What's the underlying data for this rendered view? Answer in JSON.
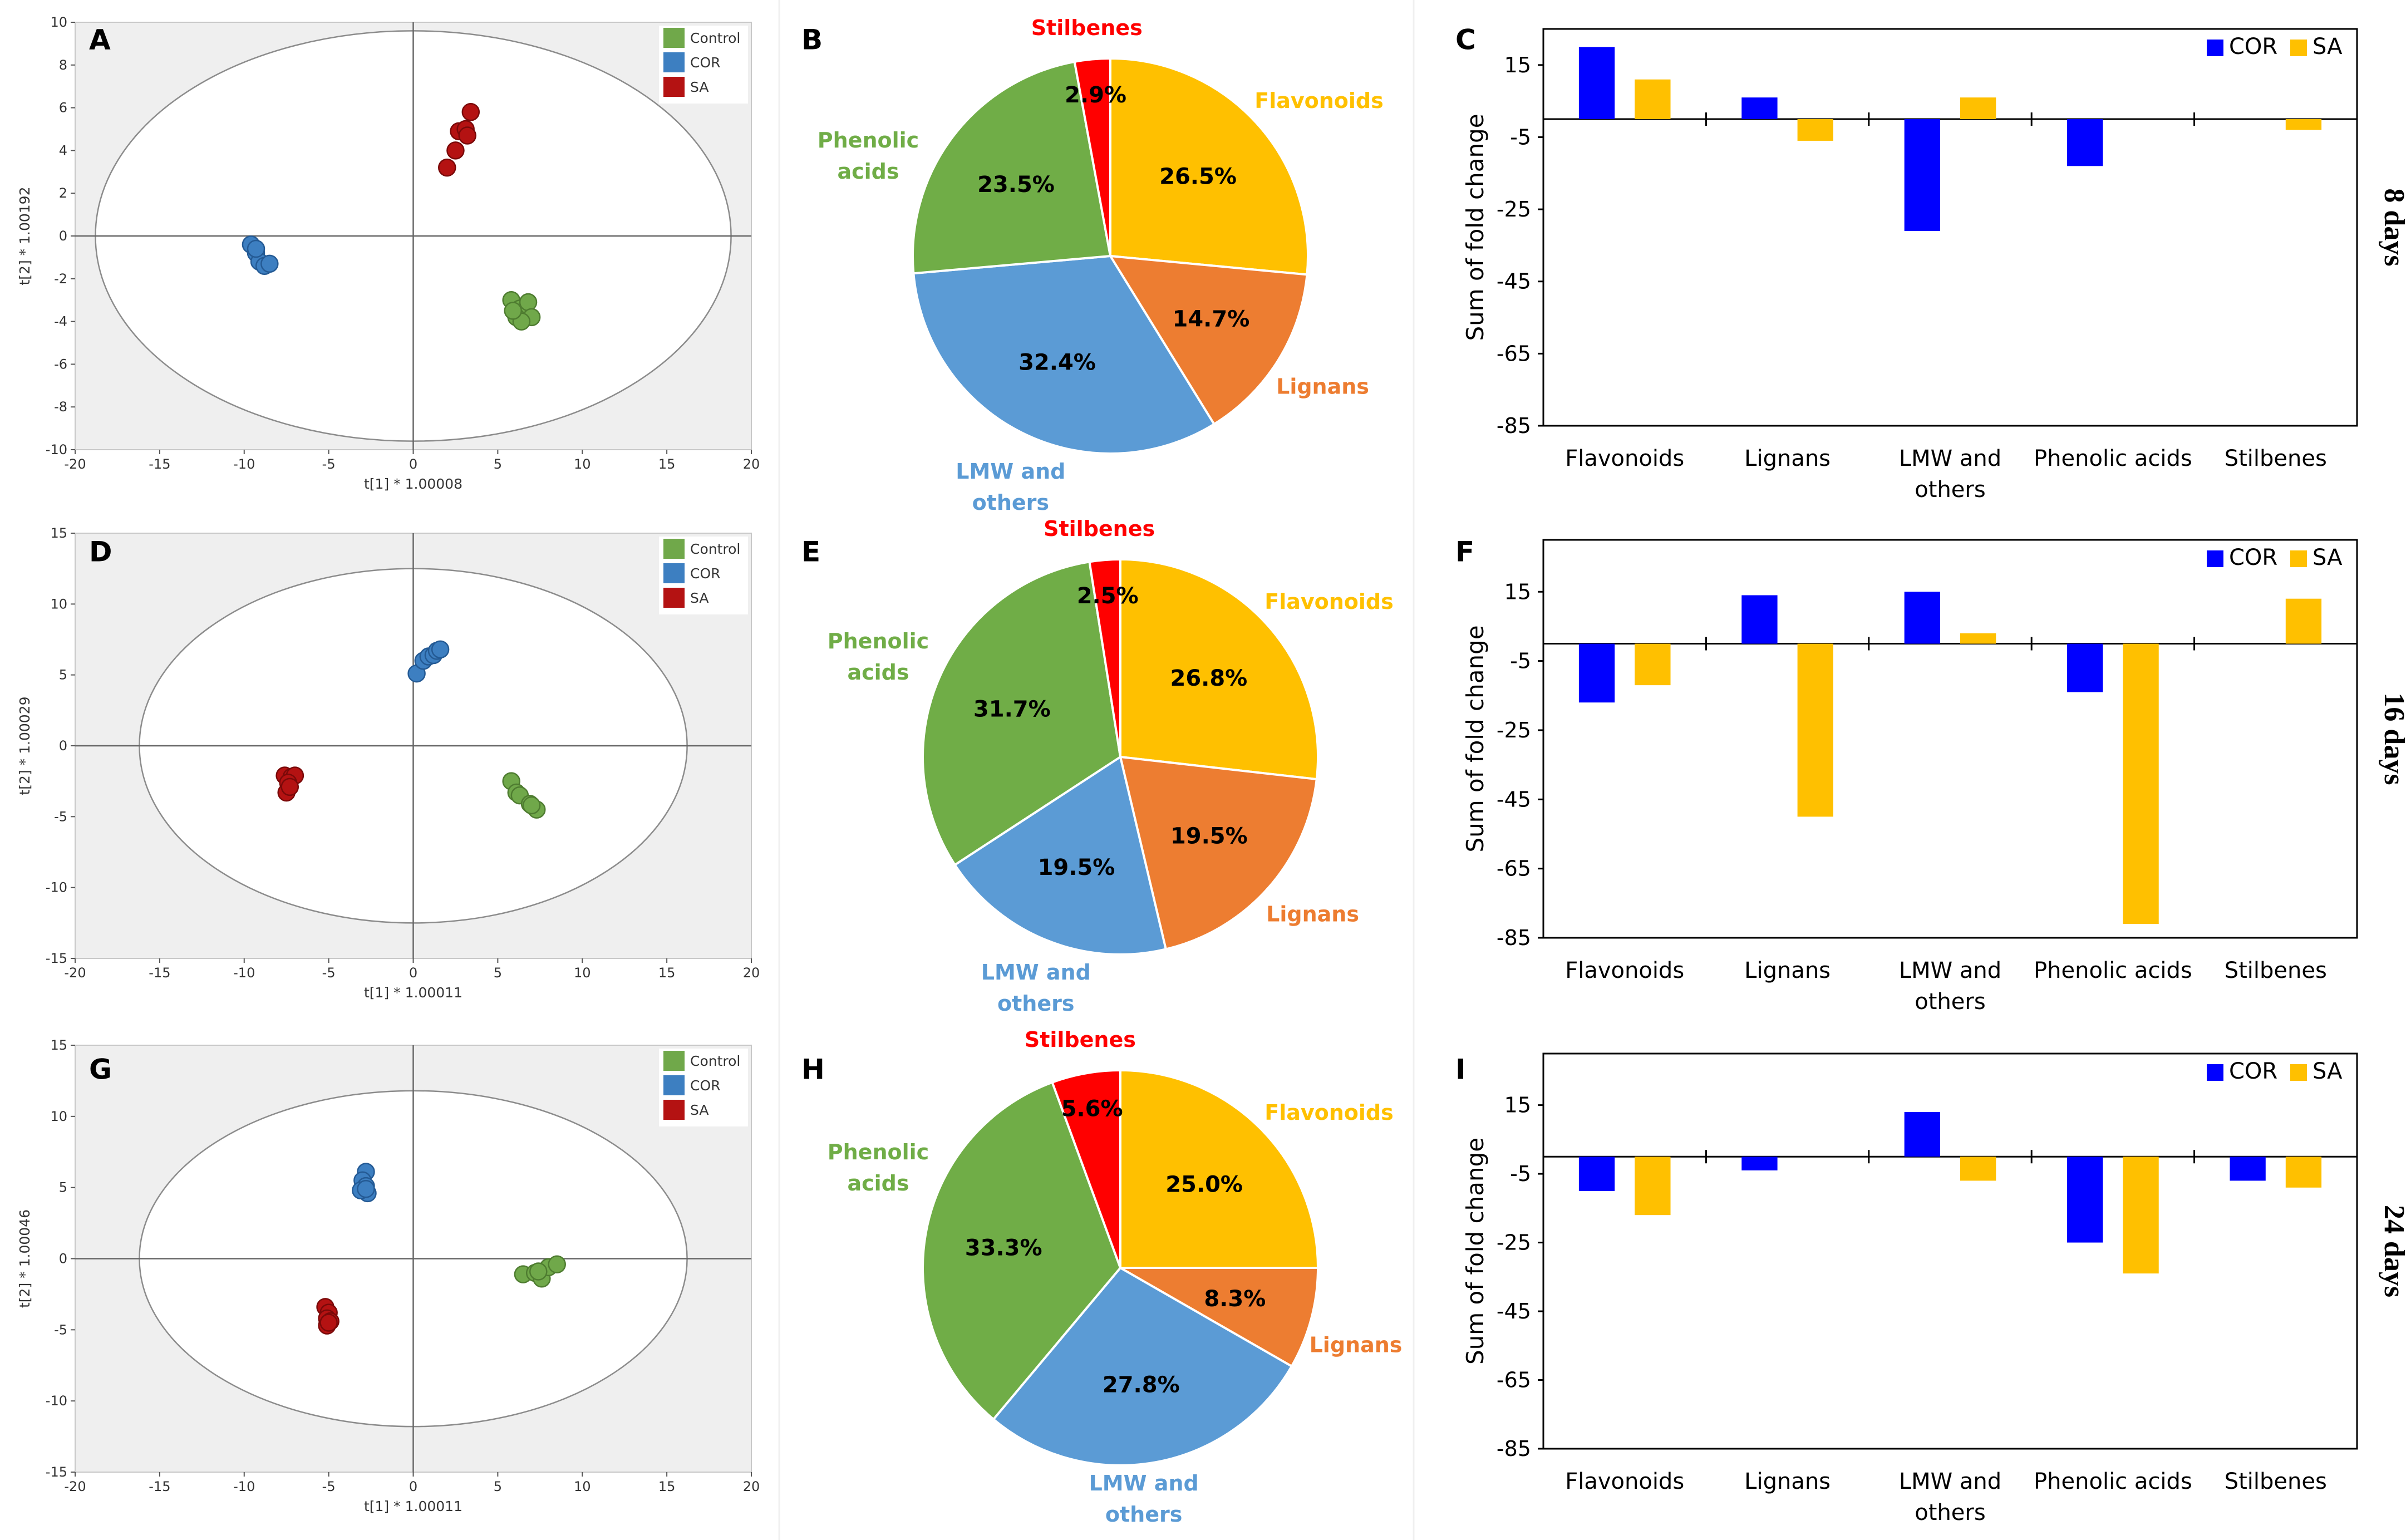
{
  "colors": {
    "control": "#70a84a",
    "control_edge": "#4e7c30",
    "cor": "#3d7fc1",
    "cor_edge": "#245a94",
    "sa": "#b41212",
    "sa_edge": "#7a0909",
    "bar_cor": "#0000ff",
    "bar_sa": "#ffc000",
    "flavonoids": "#ffc000",
    "lignans": "#ed7d31",
    "lmw": "#5b9bd5",
    "phenolic": "#70ad47",
    "stilbenes": "#ff0000"
  },
  "row_labels": [
    "8 days",
    "16 days",
    "24 days"
  ],
  "chart_data": [
    {
      "panel": "A",
      "type": "scatter",
      "xlabel": "t[1] * 1.00008",
      "ylabel": "t[2] * 1.00192",
      "xlim": [
        -20,
        20
      ],
      "ylim": [
        -10,
        10
      ],
      "xticks": [
        -20,
        -15,
        -10,
        -5,
        0,
        5,
        10,
        15,
        20
      ],
      "yticks": [
        -10,
        -8,
        -6,
        -4,
        -2,
        0,
        2,
        4,
        6,
        8,
        10
      ],
      "ellipse": {
        "cx": 0,
        "cy": 0,
        "rx": 18.8,
        "ry": 9.6
      },
      "legend": [
        "Control",
        "COR",
        "SA"
      ],
      "series": [
        {
          "name": "Control",
          "points": [
            [
              5.8,
              -3.0
            ],
            [
              6.3,
              -3.4
            ],
            [
              6.8,
              -3.1
            ],
            [
              6.1,
              -3.8
            ],
            [
              7.0,
              -3.8
            ],
            [
              6.4,
              -4.0
            ],
            [
              5.9,
              -3.5
            ]
          ]
        },
        {
          "name": "COR",
          "points": [
            [
              -9.6,
              -0.4
            ],
            [
              -9.3,
              -0.8
            ],
            [
              -9.1,
              -1.2
            ],
            [
              -8.8,
              -1.4
            ],
            [
              -8.5,
              -1.3
            ],
            [
              -9.3,
              -0.6
            ]
          ]
        },
        {
          "name": "SA",
          "points": [
            [
              2.0,
              3.2
            ],
            [
              2.5,
              4.0
            ],
            [
              2.7,
              4.9
            ],
            [
              3.1,
              5.0
            ],
            [
              3.2,
              4.7
            ],
            [
              3.4,
              5.8
            ]
          ]
        }
      ]
    },
    {
      "panel": "D",
      "type": "scatter",
      "xlabel": "t[1] * 1.00011",
      "ylabel": "t[2] * 1.00029",
      "xlim": [
        -20,
        20
      ],
      "ylim": [
        -15,
        15
      ],
      "xticks": [
        -20,
        -15,
        -10,
        -5,
        0,
        5,
        10,
        15,
        20
      ],
      "yticks": [
        -15,
        -10,
        -5,
        0,
        5,
        10,
        15
      ],
      "ellipse": {
        "cx": 0,
        "cy": 0,
        "rx": 16.2,
        "ry": 12.5
      },
      "legend": [
        "Control",
        "COR",
        "SA"
      ],
      "series": [
        {
          "name": "Control",
          "points": [
            [
              5.8,
              -2.5
            ],
            [
              6.1,
              -3.3
            ],
            [
              6.3,
              -3.5
            ],
            [
              6.9,
              -4.1
            ],
            [
              7.3,
              -4.5
            ],
            [
              7.0,
              -4.2
            ]
          ]
        },
        {
          "name": "COR",
          "points": [
            [
              0.2,
              5.1
            ],
            [
              0.6,
              6.0
            ],
            [
              0.9,
              6.3
            ],
            [
              1.2,
              6.4
            ],
            [
              1.4,
              6.7
            ],
            [
              1.6,
              6.8
            ]
          ]
        },
        {
          "name": "SA",
          "points": [
            [
              -7.6,
              -2.1
            ],
            [
              -7.2,
              -2.2
            ],
            [
              -7.0,
              -2.1
            ],
            [
              -7.4,
              -2.6
            ],
            [
              -7.5,
              -3.3
            ],
            [
              -7.3,
              -2.9
            ]
          ]
        }
      ]
    },
    {
      "panel": "G",
      "type": "scatter",
      "xlabel": "t[1] * 1.00011",
      "ylabel": "t[2] * 1.00046",
      "xlim": [
        -20,
        20
      ],
      "ylim": [
        -15,
        15
      ],
      "xticks": [
        -20,
        -15,
        -10,
        -5,
        0,
        5,
        10,
        15,
        20
      ],
      "yticks": [
        -15,
        -10,
        -5,
        0,
        5,
        10,
        15
      ],
      "ellipse": {
        "cx": 0,
        "cy": 0,
        "rx": 16.2,
        "ry": 11.8
      },
      "legend": [
        "Control",
        "COR",
        "SA"
      ],
      "series": [
        {
          "name": "Control",
          "points": [
            [
              6.5,
              -1.1
            ],
            [
              7.2,
              -1.0
            ],
            [
              7.6,
              -1.4
            ],
            [
              8.0,
              -0.6
            ],
            [
              8.5,
              -0.4
            ],
            [
              7.4,
              -0.9
            ]
          ]
        },
        {
          "name": "COR",
          "points": [
            [
              -2.8,
              6.1
            ],
            [
              -3.0,
              5.5
            ],
            [
              -2.8,
              5.1
            ],
            [
              -2.7,
              4.6
            ],
            [
              -3.1,
              4.8
            ],
            [
              -2.8,
              4.9
            ]
          ]
        },
        {
          "name": "SA",
          "points": [
            [
              -5.2,
              -3.4
            ],
            [
              -5.0,
              -3.8
            ],
            [
              -5.1,
              -4.2
            ],
            [
              -4.9,
              -4.4
            ],
            [
              -5.1,
              -4.7
            ],
            [
              -5.0,
              -4.5
            ]
          ]
        }
      ]
    },
    {
      "panel": "B",
      "type": "pie",
      "start_deg": 0,
      "slices": [
        {
          "label": "Flavonoids",
          "value": 26.5,
          "text": "26.5%"
        },
        {
          "label": "Lignans",
          "value": 14.7,
          "text": "14.7%"
        },
        {
          "label": "LMW and others",
          "value": 32.4,
          "text": "32.4%"
        },
        {
          "label": "Phenolic acids",
          "value": 23.5,
          "text": "23.5%"
        },
        {
          "label": "Stilbenes",
          "value": 2.9,
          "text": "2.9%"
        }
      ]
    },
    {
      "panel": "E",
      "type": "pie",
      "start_deg": 0,
      "slices": [
        {
          "label": "Flavonoids",
          "value": 26.8,
          "text": "26.8%"
        },
        {
          "label": "Lignans",
          "value": 19.5,
          "text": "19.5%"
        },
        {
          "label": "LMW and others",
          "value": 19.5,
          "text": "19.5%"
        },
        {
          "label": "Phenolic acids",
          "value": 31.7,
          "text": "31.7%"
        },
        {
          "label": "Stilbenes",
          "value": 2.5,
          "text": "2.5%"
        }
      ]
    },
    {
      "panel": "H",
      "type": "pie",
      "start_deg": 0,
      "slices": [
        {
          "label": "Flavonoids",
          "value": 25.0,
          "text": "25.0%"
        },
        {
          "label": "Lignans",
          "value": 8.3,
          "text": "8.3%"
        },
        {
          "label": "LMW and others",
          "value": 27.8,
          "text": "27.8%"
        },
        {
          "label": "Phenolic acids",
          "value": 33.3,
          "text": "33.3%"
        },
        {
          "label": "Stilbenes",
          "value": 5.6,
          "text": "5.6%"
        }
      ]
    },
    {
      "panel": "C",
      "type": "bar",
      "ylabel": "Sum of fold change",
      "ylim": [
        -85,
        25
      ],
      "yticks": [
        15,
        -5,
        -25,
        -45,
        -65,
        -85
      ],
      "categories": [
        "Flavonoids",
        "Lignans",
        "LMW and others",
        "Phenolic acids",
        "Stilbenes"
      ],
      "series": [
        {
          "name": "COR",
          "values": [
            20,
            6,
            -31,
            -13,
            0
          ]
        },
        {
          "name": "SA",
          "values": [
            11,
            -6,
            6,
            0,
            -3
          ]
        }
      ]
    },
    {
      "panel": "F",
      "type": "bar",
      "ylabel": "Sum of fold change",
      "ylim": [
        -85,
        30
      ],
      "yticks": [
        15,
        -5,
        -25,
        -45,
        -65,
        -85
      ],
      "categories": [
        "Flavonoids",
        "Lignans",
        "LMW and others",
        "Phenolic acids",
        "Stilbenes"
      ],
      "series": [
        {
          "name": "COR",
          "values": [
            -17,
            14,
            15,
            -14,
            0
          ]
        },
        {
          "name": "SA",
          "values": [
            -12,
            -50,
            3,
            -81,
            13
          ]
        }
      ]
    },
    {
      "panel": "I",
      "type": "bar",
      "ylabel": "Sum of fold change",
      "ylim": [
        -85,
        30
      ],
      "yticks": [
        15,
        -5,
        -25,
        -45,
        -65,
        -85
      ],
      "categories": [
        "Flavonoids",
        "Lignans",
        "LMW and others",
        "Phenolic acids",
        "Stilbenes"
      ],
      "series": [
        {
          "name": "COR",
          "values": [
            -10,
            -4,
            13,
            -25,
            -7
          ]
        },
        {
          "name": "SA",
          "values": [
            -17,
            0,
            -7,
            -34,
            -9
          ]
        }
      ]
    }
  ]
}
